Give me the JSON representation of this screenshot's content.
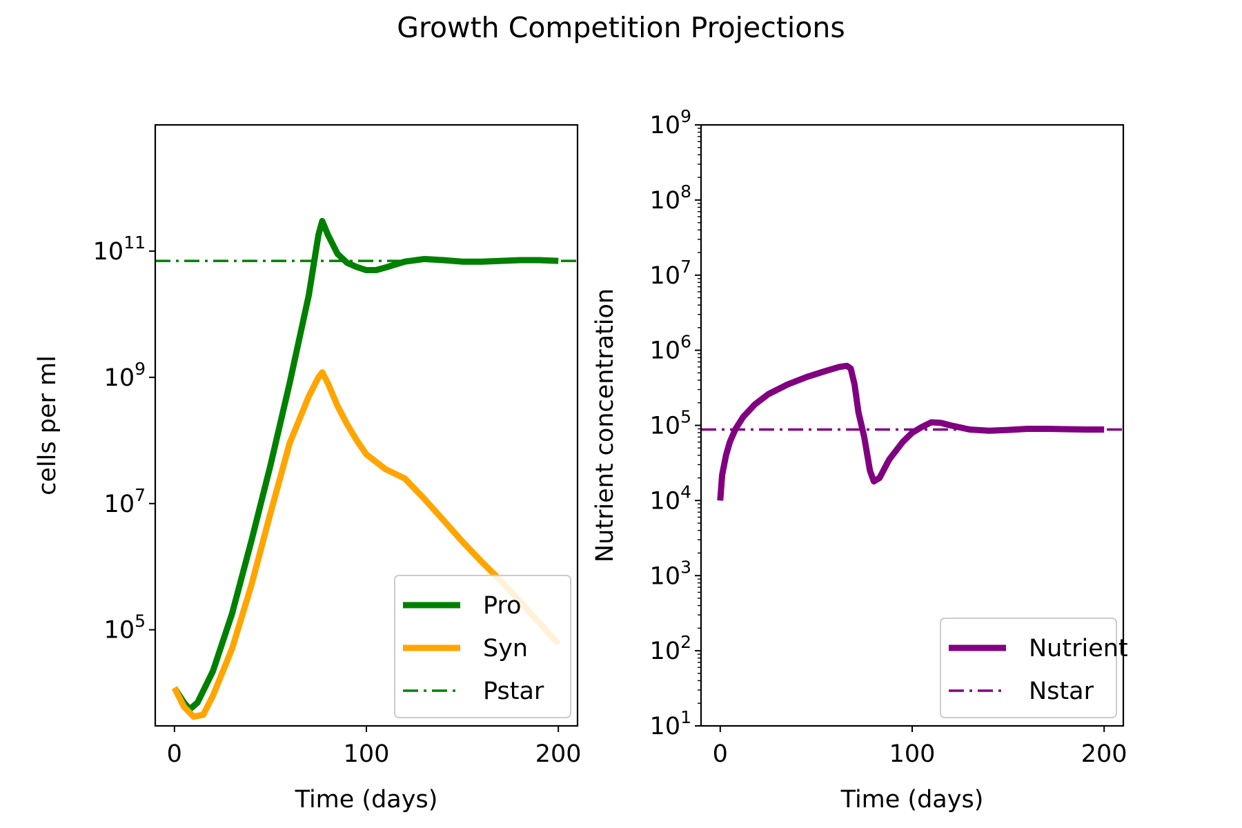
{
  "figure": {
    "title": "Growth Competition Projections"
  },
  "chart_data": [
    {
      "type": "line",
      "xlabel": "Time (days)",
      "ylabel": "cells per ml",
      "xlim": [
        -10,
        210
      ],
      "ylim": [
        3000,
        10000000000000
      ],
      "yscale": "log",
      "xticks": [
        0,
        100,
        200
      ],
      "yticks": [
        100000,
        10000000,
        1000000000,
        100000000000
      ],
      "ytick_exponents": [
        "5",
        "7",
        "9",
        "11"
      ],
      "grid": false,
      "legend_position": "lower right",
      "series": [
        {
          "name": "Pro",
          "color": "#008000",
          "style": "solid",
          "points": [
            [
              0,
              12000
            ],
            [
              5,
              7000
            ],
            [
              8,
              5500
            ],
            [
              12,
              7000
            ],
            [
              20,
              22000
            ],
            [
              30,
              180000
            ],
            [
              40,
              2500000
            ],
            [
              50,
              40000000
            ],
            [
              60,
              800000000
            ],
            [
              70,
              20000000000
            ],
            [
              75,
              180000000000
            ],
            [
              77,
              300000000000
            ],
            [
              80,
              180000000000
            ],
            [
              85,
              90000000000
            ],
            [
              90,
              65000000000
            ],
            [
              95,
              56000000000
            ],
            [
              100,
              50000000000
            ],
            [
              105,
              50000000000
            ],
            [
              110,
              55000000000
            ],
            [
              120,
              68000000000
            ],
            [
              130,
              75000000000
            ],
            [
              140,
              72000000000
            ],
            [
              150,
              68000000000
            ],
            [
              160,
              68000000000
            ],
            [
              170,
              70000000000
            ],
            [
              180,
              72000000000
            ],
            [
              190,
              72000000000
            ],
            [
              200,
              70000000000
            ]
          ]
        },
        {
          "name": "Syn",
          "color": "#ffa500",
          "style": "solid",
          "points": [
            [
              0,
              12000
            ],
            [
              5,
              6000
            ],
            [
              10,
              4200
            ],
            [
              15,
              4500
            ],
            [
              20,
              9000
            ],
            [
              30,
              50000
            ],
            [
              40,
              500000
            ],
            [
              50,
              7000000
            ],
            [
              60,
              90000000
            ],
            [
              70,
              500000000
            ],
            [
              75,
              1000000000
            ],
            [
              77,
              1200000000
            ],
            [
              80,
              800000000
            ],
            [
              85,
              350000000
            ],
            [
              90,
              180000000
            ],
            [
              95,
              100000000
            ],
            [
              100,
              60000000
            ],
            [
              110,
              35000000
            ],
            [
              120,
              25000000
            ],
            [
              130,
              12000000
            ],
            [
              140,
              5500000
            ],
            [
              150,
              2500000
            ],
            [
              160,
              1200000
            ],
            [
              170,
              600000
            ],
            [
              180,
              280000
            ],
            [
              190,
              130000
            ],
            [
              200,
              60000
            ]
          ]
        },
        {
          "name": "Pstar",
          "color": "#008000",
          "style": "dashdot",
          "points": [
            [
              -10,
              70000000000
            ],
            [
              210,
              70000000000
            ]
          ]
        }
      ]
    },
    {
      "type": "line",
      "xlabel": "Time (days)",
      "ylabel": "Nutrient concentration",
      "xlim": [
        -10,
        210
      ],
      "ylim": [
        10,
        1000000000
      ],
      "yscale": "log",
      "xticks": [
        0,
        100,
        200
      ],
      "yticks": [
        10,
        100,
        1000,
        10000,
        100000,
        1000000,
        10000000,
        100000000,
        1000000000
      ],
      "ytick_exponents": [
        "1",
        "2",
        "3",
        "4",
        "5",
        "6",
        "7",
        "8",
        "9"
      ],
      "grid": false,
      "legend_position": "lower right",
      "series": [
        {
          "name": "Nutrient",
          "color": "#800080",
          "style": "solid",
          "points": [
            [
              0,
              10000
            ],
            [
              1,
              22000
            ],
            [
              3,
              40000
            ],
            [
              5,
              60000
            ],
            [
              8,
              90000
            ],
            [
              12,
              130000
            ],
            [
              18,
              190000
            ],
            [
              25,
              260000
            ],
            [
              35,
              350000
            ],
            [
              45,
              440000
            ],
            [
              55,
              530000
            ],
            [
              62,
              600000
            ],
            [
              66,
              620000
            ],
            [
              68,
              570000
            ],
            [
              70,
              350000
            ],
            [
              72,
              150000
            ],
            [
              75,
              70000
            ],
            [
              78,
              25000
            ],
            [
              80,
              18000
            ],
            [
              83,
              20000
            ],
            [
              88,
              35000
            ],
            [
              95,
              60000
            ],
            [
              100,
              80000
            ],
            [
              105,
              95000
            ],
            [
              110,
              110000
            ],
            [
              115,
              108000
            ],
            [
              120,
              100000
            ],
            [
              130,
              88000
            ],
            [
              140,
              85000
            ],
            [
              150,
              87000
            ],
            [
              160,
              90000
            ],
            [
              170,
              90000
            ],
            [
              180,
              89000
            ],
            [
              190,
              88000
            ],
            [
              200,
              88000
            ]
          ]
        },
        {
          "name": "Nstar",
          "color": "#800080",
          "style": "dashdot",
          "points": [
            [
              -10,
              88000
            ],
            [
              210,
              88000
            ]
          ]
        }
      ]
    }
  ]
}
